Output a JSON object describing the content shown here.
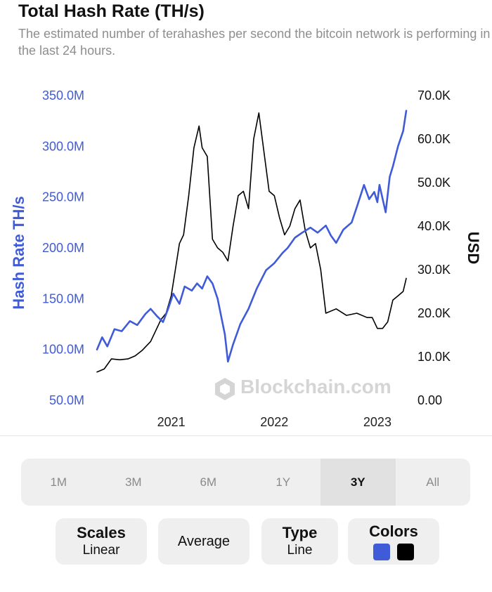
{
  "header": {
    "title": "Total Hash Rate (TH/s)",
    "subtitle": "The estimated number of terahashes per second the bitcoin network is performing in the last 24 hours."
  },
  "watermark": {
    "text": "Blockchain.com",
    "icon": "blockchain-logo-icon"
  },
  "colors": {
    "hash": "#3f5bd8",
    "price": "#000000",
    "left_axis": "#3f5bd8",
    "right_axis": "#111111",
    "x_axis": "#222222",
    "watermark": "#d5d5d5"
  },
  "chart_data": {
    "type": "line",
    "title": "Total Hash Rate (TH/s)",
    "ylabel": "Hash Rate TH/s",
    "y2label": "USD",
    "ylim": [
      50,
      350
    ],
    "y2lim": [
      0,
      70
    ],
    "xlim": [
      2020.28,
      2023.28
    ],
    "y_ticks": [
      "350.0M",
      "300.0M",
      "250.0M",
      "200.0M",
      "150.0M",
      "100.0M",
      "50.0M"
    ],
    "y_tick_values": [
      350,
      300,
      250,
      200,
      150,
      100,
      50
    ],
    "y2_ticks": [
      "70.0K",
      "60.0K",
      "50.0K",
      "40.0K",
      "30.0K",
      "20.0K",
      "10.0K",
      "0.00"
    ],
    "y2_tick_values": [
      70,
      60,
      50,
      40,
      30,
      20,
      10,
      0
    ],
    "x_ticks": [
      "2021",
      "2022",
      "2023"
    ],
    "x_tick_values": [
      2021.0,
      2022.0,
      2023.0
    ],
    "grid": false,
    "series": [
      {
        "name": "Hash Rate TH/s",
        "axis": "left",
        "x": [
          2020.28,
          2020.33,
          2020.38,
          2020.45,
          2020.52,
          2020.6,
          2020.67,
          2020.75,
          2020.8,
          2020.86,
          2020.92,
          2020.97,
          2021.02,
          2021.08,
          2021.13,
          2021.2,
          2021.25,
          2021.3,
          2021.35,
          2021.4,
          2021.45,
          2021.48,
          2021.52,
          2021.55,
          2021.6,
          2021.67,
          2021.75,
          2021.83,
          2021.92,
          2022.0,
          2022.08,
          2022.13,
          2022.2,
          2022.27,
          2022.35,
          2022.42,
          2022.5,
          2022.55,
          2022.6,
          2022.67,
          2022.75,
          2022.8,
          2022.87,
          2022.92,
          2022.97,
          2023.0,
          2023.02,
          2023.08,
          2023.12,
          2023.15,
          2023.2,
          2023.25,
          2023.28
        ],
        "values": [
          100,
          112,
          103,
          120,
          118,
          128,
          124,
          135,
          140,
          133,
          127,
          140,
          155,
          145,
          162,
          158,
          165,
          160,
          172,
          165,
          150,
          135,
          115,
          88,
          105,
          125,
          140,
          160,
          178,
          185,
          195,
          200,
          210,
          215,
          220,
          215,
          222,
          212,
          205,
          218,
          225,
          240,
          262,
          248,
          255,
          245,
          262,
          235,
          270,
          280,
          300,
          315,
          335
        ]
      },
      {
        "name": "USD",
        "axis": "right",
        "x": [
          2020.28,
          2020.35,
          2020.42,
          2020.5,
          2020.58,
          2020.65,
          2020.72,
          2020.8,
          2020.85,
          2020.9,
          2020.95,
          2021.0,
          2021.04,
          2021.08,
          2021.12,
          2021.17,
          2021.22,
          2021.27,
          2021.3,
          2021.35,
          2021.4,
          2021.45,
          2021.5,
          2021.55,
          2021.6,
          2021.65,
          2021.7,
          2021.75,
          2021.8,
          2021.85,
          2021.9,
          2021.95,
          2022.0,
          2022.05,
          2022.1,
          2022.15,
          2022.2,
          2022.25,
          2022.3,
          2022.35,
          2022.4,
          2022.45,
          2022.5,
          2022.6,
          2022.7,
          2022.8,
          2022.9,
          2022.95,
          2023.0,
          2023.05,
          2023.1,
          2023.15,
          2023.2,
          2023.25,
          2023.28
        ],
        "values": [
          6.5,
          7.2,
          9.5,
          9.3,
          9.5,
          10.2,
          11.5,
          13.5,
          16,
          18.5,
          20,
          24,
          30,
          36,
          38,
          47,
          58,
          63,
          58,
          56,
          37,
          35,
          34,
          32,
          40,
          47,
          48,
          44,
          60,
          66,
          57,
          48,
          47,
          42,
          38,
          40,
          44,
          46,
          39,
          35,
          36,
          30,
          20,
          21,
          19.5,
          20,
          19,
          19,
          16.5,
          16.5,
          18,
          23,
          24,
          25,
          28
        ]
      }
    ]
  },
  "ranges": {
    "items": [
      {
        "label": "1M",
        "active": false
      },
      {
        "label": "3M",
        "active": false
      },
      {
        "label": "6M",
        "active": false
      },
      {
        "label": "1Y",
        "active": false
      },
      {
        "label": "3Y",
        "active": true
      },
      {
        "label": "All",
        "active": false
      }
    ]
  },
  "options": {
    "scales": {
      "label": "Scales",
      "value": "Linear"
    },
    "average": {
      "label": "Average"
    },
    "type": {
      "label": "Type",
      "value": "Line"
    },
    "colors": {
      "label": "Colors",
      "swatch1": "#3f5bd8",
      "swatch2": "#000000"
    }
  }
}
